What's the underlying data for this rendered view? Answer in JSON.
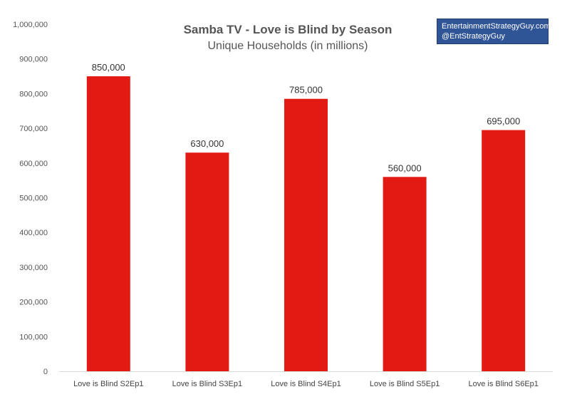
{
  "chart_data": {
    "type": "bar",
    "title": "Samba TV - Love is Blind by Season",
    "subtitle": "Unique Households (in millions)",
    "categories": [
      "Love is Blind S2Ep1",
      "Love is Blind S3Ep1",
      "Love is Blind S4Ep1",
      "Love is Blind S5Ep1",
      "Love is Blind S6Ep1"
    ],
    "values": [
      850000,
      630000,
      785000,
      560000,
      695000
    ],
    "data_labels": [
      "850,000",
      "630,000",
      "785,000",
      "560,000",
      "695,000"
    ],
    "ylim": [
      0,
      1000000
    ],
    "yticks": [
      0,
      100000,
      200000,
      300000,
      400000,
      500000,
      600000,
      700000,
      800000,
      900000,
      1000000
    ],
    "ytick_labels": [
      "0",
      "100,000",
      "200,000",
      "300,000",
      "400,000",
      "500,000",
      "600,000",
      "700,000",
      "800,000",
      "900,000",
      "1,000,000"
    ],
    "xlabel": "",
    "ylabel": "",
    "grid": false,
    "bar_color": "#e31a14"
  },
  "credit": {
    "line1": "EntertainmentStrategyGuy.com",
    "line2": "@EntStrategyGuy",
    "background": "#2f5597"
  }
}
